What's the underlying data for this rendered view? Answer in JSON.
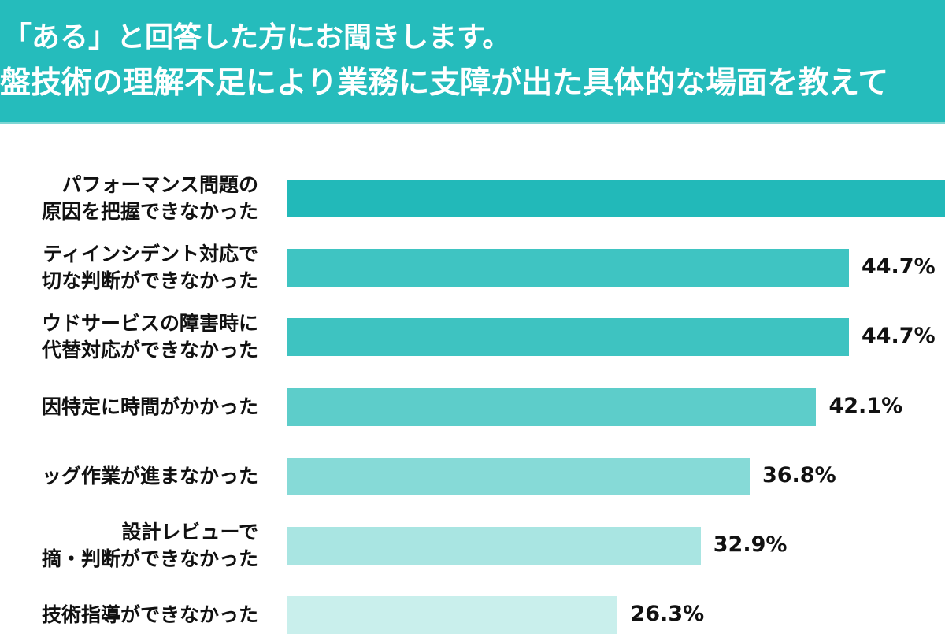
{
  "header": {
    "line1": "「ある」と回答した方にお聞きします。",
    "line2": "盤技術の理解不足により業務に支障が出た具体的な場面を教えて",
    "background": "#25bcbc"
  },
  "chart_data": {
    "type": "bar",
    "orientation": "horizontal",
    "categories": [
      "パフォーマンス問題の\n原因を把握できなかった",
      "ティインシデント対応で\n切な判断ができなかった",
      "ウドサービスの障害時に\n代替対応ができなかった",
      "因特定に時間がかかった",
      "ッグ作業が進まなかった",
      "設計レビューで\n摘・判断ができなかった",
      "技術指導ができなかった"
    ],
    "values": [
      null,
      44.7,
      44.7,
      42.1,
      36.8,
      32.9,
      26.3
    ],
    "value_labels": [
      "",
      "44.7%",
      "44.7%",
      "42.1%",
      "36.8%",
      "32.9%",
      "26.3%"
    ],
    "colors": [
      "#22b9b9",
      "#3fc4c2",
      "#3ec3c1",
      "#5dcdca",
      "#86dad7",
      "#a9e5e2",
      "#c9efec"
    ],
    "unit": "%",
    "grid": false
  }
}
